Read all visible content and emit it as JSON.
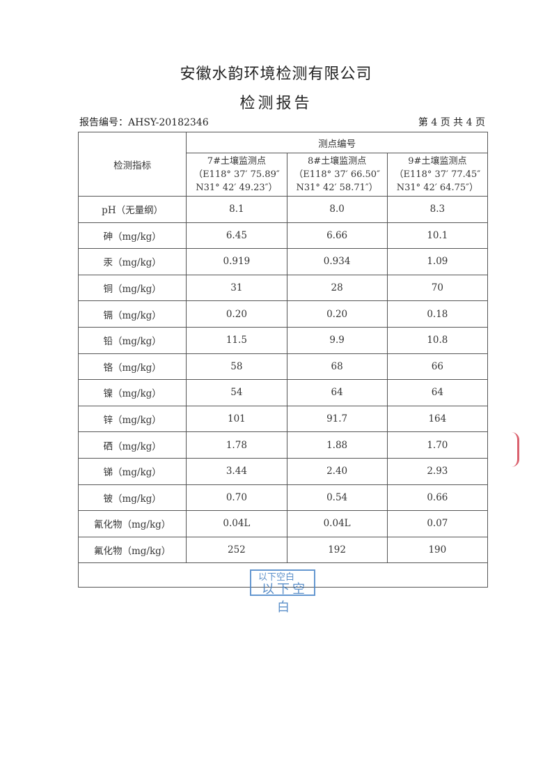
{
  "header": {
    "company": "安徽水韵环境检测有限公司",
    "title": "检测报告",
    "report_no": "报告编号：AHSY-20182346",
    "page": "第 4 页  共 4 页"
  },
  "table": {
    "index_header": "检测指标",
    "group_header": "测点编号",
    "points": [
      {
        "name": "7#土壤监测点",
        "coord1": "（E118° 37′ 75.89″",
        "coord2": "N31° 42′ 49.23″）"
      },
      {
        "name": "8#土壤监测点",
        "coord1": "（E118° 37′ 66.50″",
        "coord2": "N31° 42′ 58.71″）"
      },
      {
        "name": "9#土壤监测点",
        "coord1": "（E118° 37′ 77.45″",
        "coord2": "N31° 42′ 64.75″）"
      }
    ],
    "rows": [
      {
        "label": "pH（无量纲）",
        "v": [
          "8.1",
          "8.0",
          "8.3"
        ]
      },
      {
        "label": "砷（mg/kg）",
        "v": [
          "6.45",
          "6.66",
          "10.1"
        ]
      },
      {
        "label": "汞（mg/kg）",
        "v": [
          "0.919",
          "0.934",
          "1.09"
        ]
      },
      {
        "label": "铜（mg/kg）",
        "v": [
          "31",
          "28",
          "70"
        ]
      },
      {
        "label": "镉（mg/kg）",
        "v": [
          "0.20",
          "0.20",
          "0.18"
        ]
      },
      {
        "label": "铅（mg/kg）",
        "v": [
          "11.5",
          "9.9",
          "10.8"
        ]
      },
      {
        "label": "铬（mg/kg）",
        "v": [
          "58",
          "68",
          "66"
        ]
      },
      {
        "label": "镍（mg/kg）",
        "v": [
          "54",
          "64",
          "64"
        ]
      },
      {
        "label": "锌（mg/kg）",
        "v": [
          "101",
          "91.7",
          "164"
        ]
      },
      {
        "label": "硒（mg/kg）",
        "v": [
          "1.78",
          "1.88",
          "1.70"
        ]
      },
      {
        "label": "锑（mg/kg）",
        "v": [
          "3.44",
          "2.40",
          "2.93"
        ]
      },
      {
        "label": "铍（mg/kg）",
        "v": [
          "0.70",
          "0.54",
          "0.66"
        ]
      },
      {
        "label": "氰化物（mg/kg）",
        "v": [
          "0.04L",
          "0.04L",
          "0.07"
        ]
      },
      {
        "label": "氟化物（mg/kg）",
        "v": [
          "252",
          "192",
          "190"
        ]
      }
    ]
  },
  "stamp": {
    "line1": "以下空白",
    "line2": "以下空白",
    "color": "#3f7cc0"
  }
}
